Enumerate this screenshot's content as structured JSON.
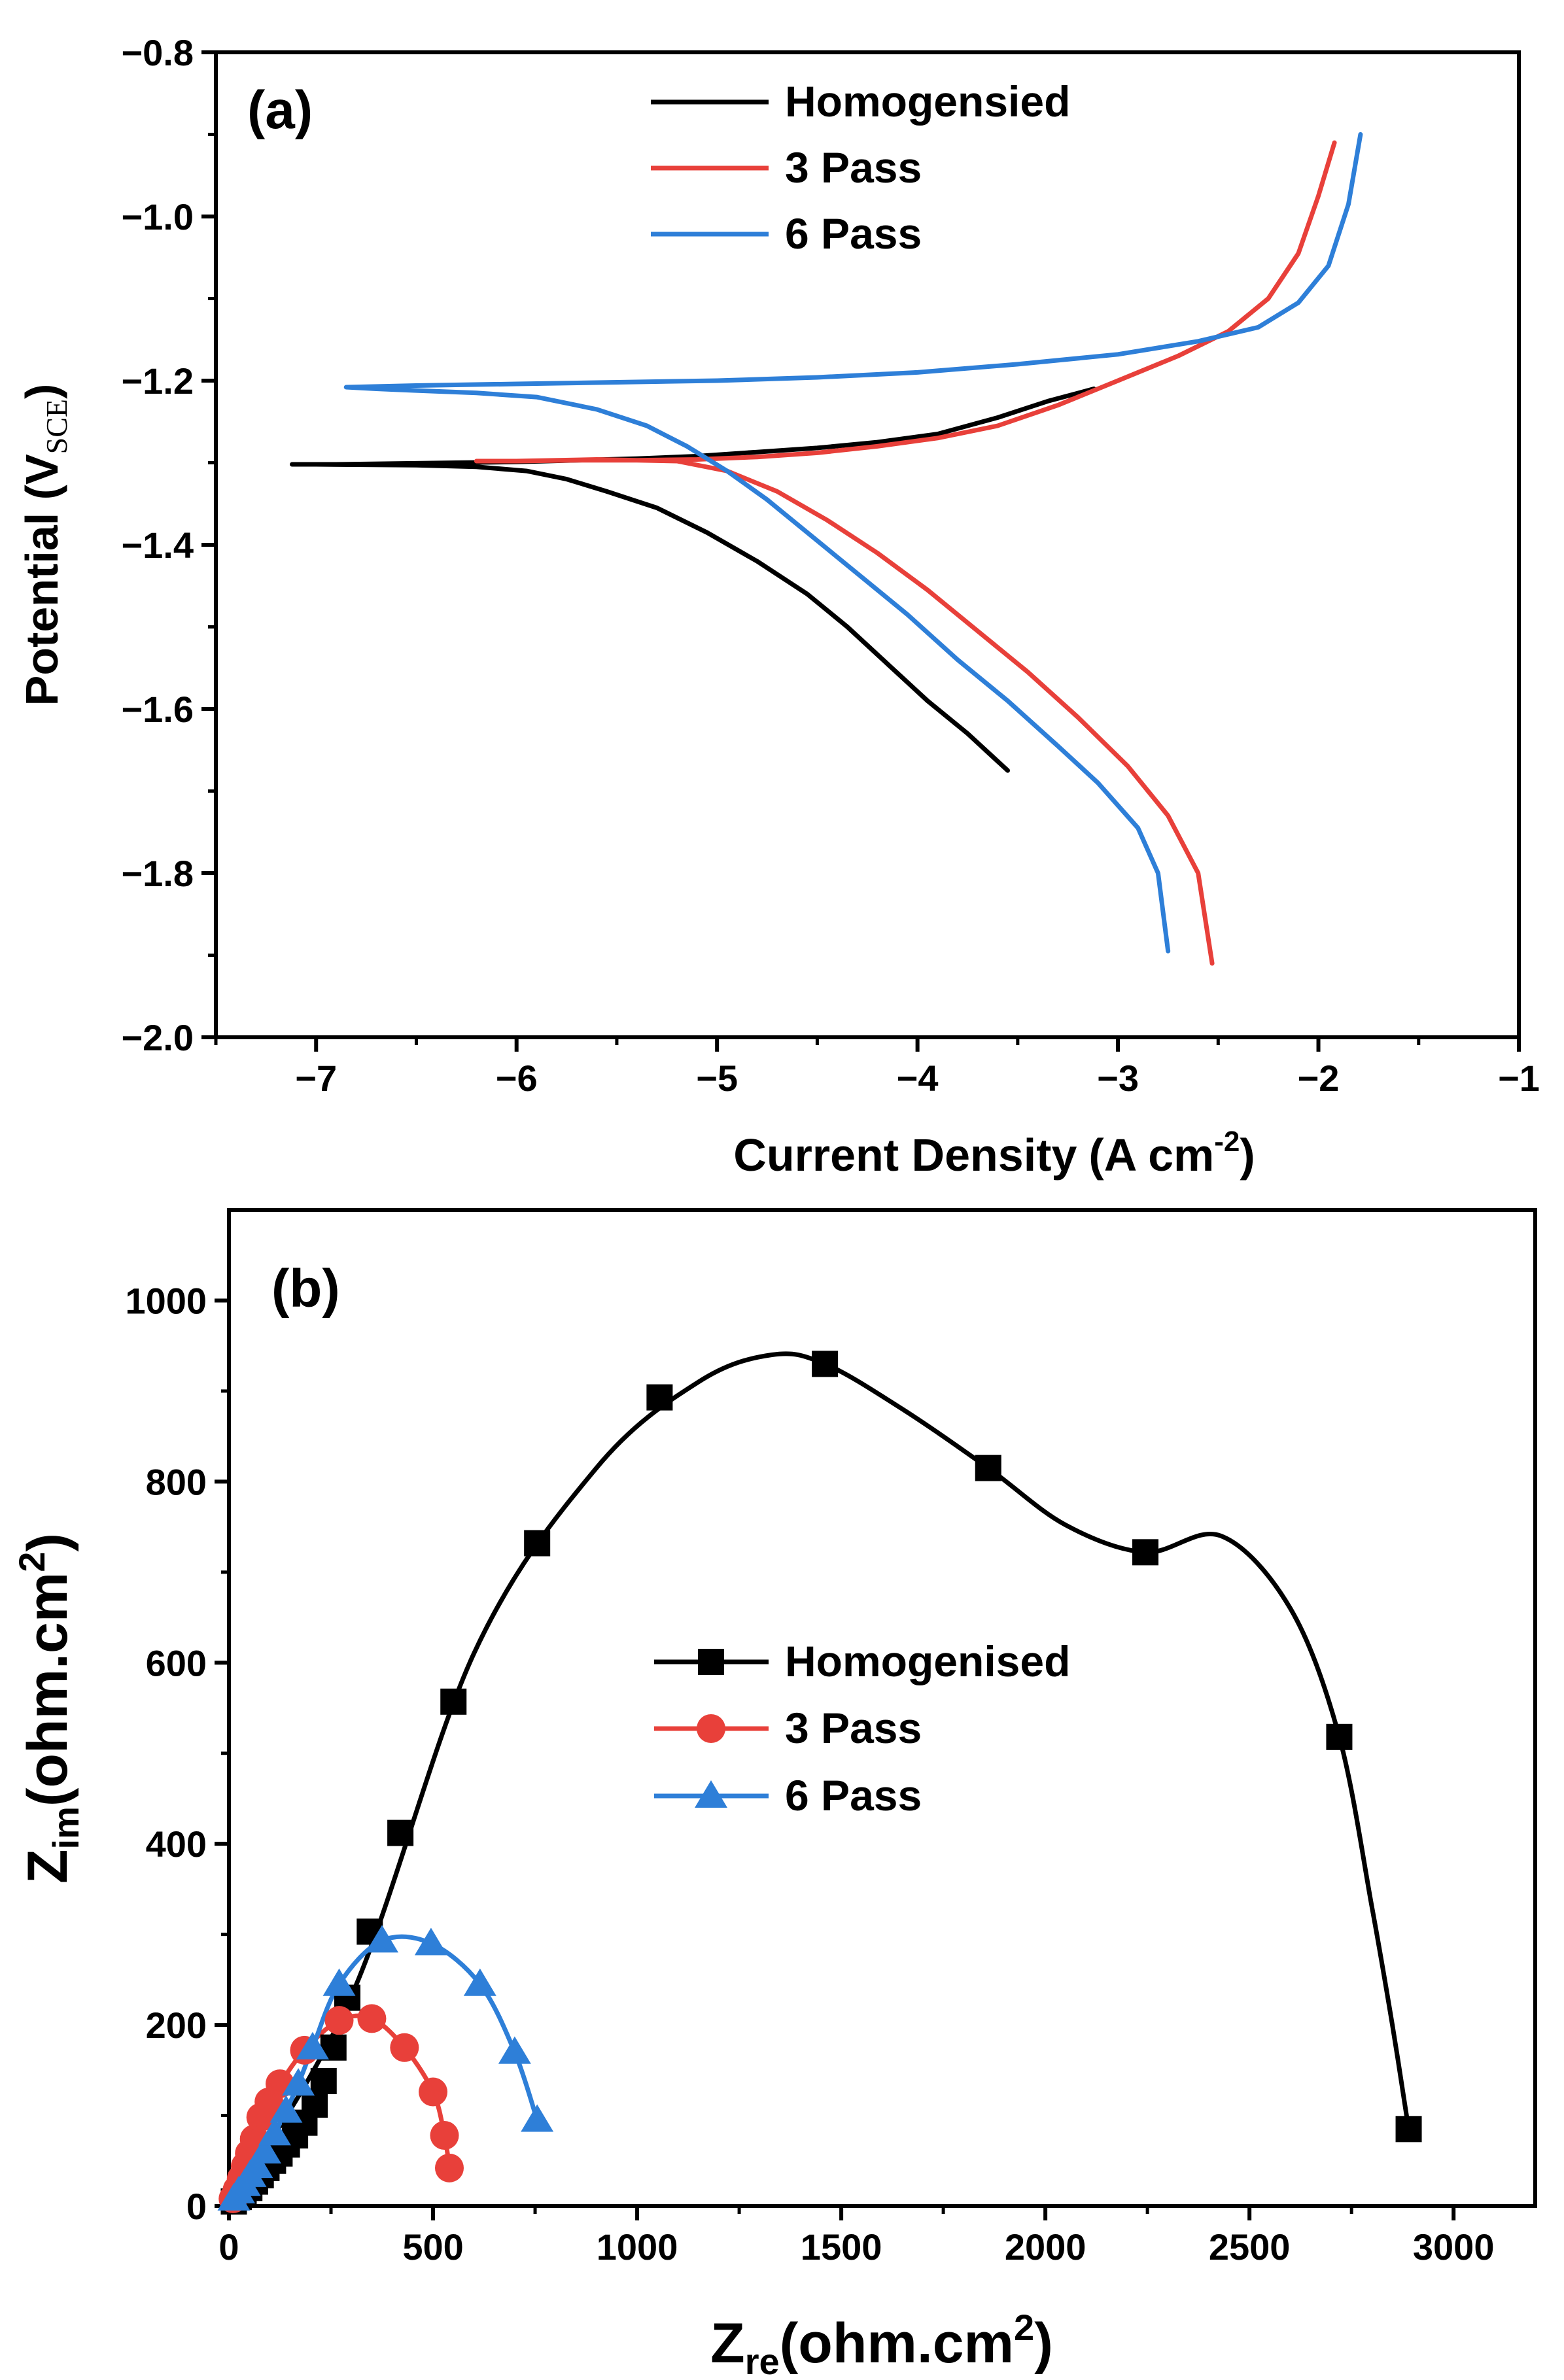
{
  "chart_data": [
    {
      "type": "line",
      "panel_label": "(a)",
      "xlabel": "Current Density",
      "xlabel_unit_prefix": "(A cm",
      "xlabel_unit_sup": "-2",
      "xlabel_unit_suffix": ")",
      "ylabel": "Potential (V",
      "ylabel_sub": "SCE",
      "ylabel_suffix": ")",
      "xlim": [
        -7.5,
        -1
      ],
      "ylim": [
        -2.0,
        -0.8
      ],
      "xticks": [
        -7,
        -6,
        -5,
        -4,
        -3,
        -2,
        -1
      ],
      "xtick_labels": [
        "−7",
        "−6",
        "−5",
        "−4",
        "−3",
        "−2",
        "−1"
      ],
      "yticks": [
        -0.8,
        -1.0,
        -1.2,
        -1.4,
        -1.6,
        -1.8,
        -2.0
      ],
      "ytick_labels": [
        "−0.8",
        "−1.0",
        "−1.2",
        "−1.4",
        "−1.6",
        "−1.8",
        "−2.0"
      ],
      "legend_position": "top-center",
      "series": [
        {
          "name": "Homogensied",
          "color": "#000000",
          "x": [
            -3.12,
            -3.35,
            -3.6,
            -3.9,
            -4.2,
            -4.5,
            -4.8,
            -5.1,
            -5.4,
            -5.7,
            -6.0,
            -6.3,
            -6.6,
            -6.9,
            -7.12,
            -7.0,
            -6.5,
            -6.2,
            -5.95,
            -5.75,
            -5.55,
            -5.3,
            -5.05,
            -4.8,
            -4.55,
            -4.35,
            -4.15,
            -3.95,
            -3.75,
            -3.55
          ],
          "y": [
            -1.21,
            -1.225,
            -1.245,
            -1.265,
            -1.275,
            -1.282,
            -1.287,
            -1.292,
            -1.295,
            -1.297,
            -1.299,
            -1.3,
            -1.301,
            -1.302,
            -1.302,
            -1.302,
            -1.303,
            -1.305,
            -1.31,
            -1.32,
            -1.335,
            -1.355,
            -1.385,
            -1.42,
            -1.46,
            -1.5,
            -1.545,
            -1.59,
            -1.63,
            -1.675
          ]
        },
        {
          "name": "3 Pass",
          "color": "#e8403a",
          "x": [
            -1.92,
            -2.0,
            -2.1,
            -2.25,
            -2.45,
            -2.7,
            -3.0,
            -3.3,
            -3.6,
            -3.9,
            -4.2,
            -4.5,
            -4.8,
            -5.1,
            -5.4,
            -5.7,
            -6.0,
            -6.2,
            -6.0,
            -5.6,
            -5.2,
            -4.95,
            -4.7,
            -4.45,
            -4.2,
            -3.95,
            -3.7,
            -3.45,
            -3.2,
            -2.95,
            -2.75,
            -2.6,
            -2.53
          ],
          "y": [
            -0.91,
            -0.975,
            -1.045,
            -1.1,
            -1.14,
            -1.17,
            -1.2,
            -1.23,
            -1.255,
            -1.27,
            -1.28,
            -1.288,
            -1.293,
            -1.296,
            -1.297,
            -1.297,
            -1.298,
            -1.298,
            -1.298,
            -1.296,
            -1.298,
            -1.31,
            -1.335,
            -1.37,
            -1.41,
            -1.455,
            -1.505,
            -1.555,
            -1.61,
            -1.67,
            -1.73,
            -1.8,
            -1.91
          ]
        },
        {
          "name": "6 Pass",
          "color": "#2e7fd8",
          "x": [
            -1.79,
            -1.85,
            -1.95,
            -2.1,
            -2.3,
            -2.6,
            -3.0,
            -3.5,
            -4.0,
            -4.5,
            -5.0,
            -5.5,
            -6.0,
            -6.5,
            -6.85,
            -6.7,
            -6.5,
            -6.2,
            -5.9,
            -5.6,
            -5.35,
            -5.15,
            -4.95,
            -4.75,
            -4.55,
            -4.3,
            -4.05,
            -3.8,
            -3.55,
            -3.3,
            -3.1,
            -2.9,
            -2.8,
            -2.75
          ],
          "y": [
            -0.9,
            -0.985,
            -1.06,
            -1.105,
            -1.135,
            -1.152,
            -1.168,
            -1.18,
            -1.19,
            -1.196,
            -1.2,
            -1.202,
            -1.204,
            -1.206,
            -1.208,
            -1.21,
            -1.212,
            -1.215,
            -1.22,
            -1.235,
            -1.255,
            -1.28,
            -1.31,
            -1.345,
            -1.385,
            -1.435,
            -1.485,
            -1.54,
            -1.59,
            -1.645,
            -1.69,
            -1.745,
            -1.8,
            -1.895
          ]
        }
      ]
    },
    {
      "type": "line",
      "panel_label": "(b)",
      "xlabel_main": "Z",
      "xlabel_sub": "re",
      "xlabel_unit": "(ohm.cm",
      "xlabel_sup": "2",
      "xlabel_close": ")",
      "ylabel_main": "Z",
      "ylabel_sub": "im",
      "ylabel_unit": "(ohm.cm",
      "ylabel_sup": "2",
      "ylabel_close": ")",
      "xlim": [
        0,
        3200
      ],
      "ylim": [
        0,
        1100
      ],
      "xticks": [
        0,
        500,
        1000,
        1500,
        2000,
        2500,
        3000
      ],
      "xtick_labels": [
        "0",
        "500",
        "1000",
        "1500",
        "2000",
        "2500",
        "3000"
      ],
      "yticks": [
        0,
        200,
        400,
        600,
        800,
        1000
      ],
      "ytick_labels": [
        "0",
        "200",
        "400",
        "600",
        "800",
        "1000"
      ],
      "legend_position": "center-left",
      "series": [
        {
          "name": "Homogenised",
          "color": "#000000",
          "marker": "square",
          "x": [
            12,
            24,
            36,
            50,
            64,
            78,
            92,
            108,
            124,
            142,
            162,
            185,
            210,
            232,
            256,
            290,
            345,
            420,
            550,
            755,
            1055,
            1460,
            1860,
            2245,
            2720,
            2890
          ],
          "y": [
            5,
            10,
            15,
            20,
            27,
            34,
            42,
            50,
            58,
            68,
            78,
            92,
            112,
            138,
            175,
            230,
            303,
            412,
            557,
            732,
            893,
            930,
            815,
            722,
            518,
            85
          ],
          "curve_x": [
            0,
            300,
            600,
            900,
            1150,
            1330,
            1460,
            1650,
            1860,
            2050,
            2245,
            2430,
            2600,
            2720,
            2800,
            2850,
            2890
          ],
          "curve_y": [
            0,
            232,
            610,
            815,
            910,
            940,
            930,
            880,
            815,
            752,
            722,
            740,
            660,
            518,
            330,
            200,
            85
          ]
        },
        {
          "name": "3 Pass",
          "color": "#e8403a",
          "marker": "circle",
          "x": [
            10,
            20,
            30,
            40,
            50,
            62,
            78,
            98,
            125,
            185,
            270,
            350,
            430,
            500,
            528,
            540
          ],
          "y": [
            8,
            18,
            30,
            44,
            58,
            74,
            98,
            115,
            135,
            172,
            205,
            207,
            175,
            126,
            78,
            42
          ]
        },
        {
          "name": "6 Pass",
          "color": "#2e7fd8",
          "marker": "triangle",
          "x": [
            12,
            24,
            38,
            52,
            68,
            88,
            112,
            140,
            170,
            205,
            270,
            375,
            495,
            615,
            700,
            755
          ],
          "y": [
            8,
            16,
            24,
            34,
            44,
            60,
            80,
            105,
            135,
            175,
            245,
            293,
            290,
            245,
            170,
            95
          ]
        }
      ]
    }
  ]
}
